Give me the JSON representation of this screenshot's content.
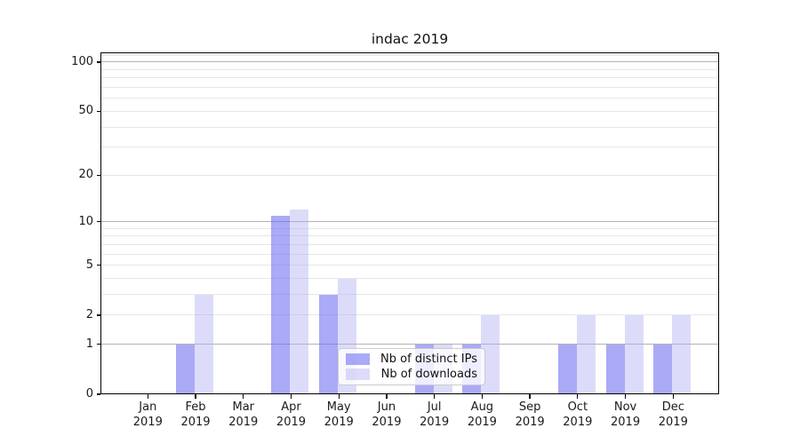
{
  "chart_data": {
    "type": "bar",
    "title": "indac 2019",
    "categories": [
      "Jan",
      "Feb",
      "Mar",
      "Apr",
      "May",
      "Jun",
      "Jul",
      "Aug",
      "Sep",
      "Oct",
      "Nov",
      "Dec"
    ],
    "x_tick_year": "2019",
    "series": [
      {
        "name": "Nb of distinct IPs",
        "color": "rgba(100,100,240,0.55)",
        "values": [
          0,
          1,
          0,
          11,
          3,
          0,
          1,
          1,
          0,
          1,
          1,
          1
        ]
      },
      {
        "name": "Nb of downloads",
        "color": "rgba(172,172,243,0.42)",
        "values": [
          0,
          3,
          0,
          12,
          4,
          0,
          1,
          2,
          0,
          2,
          2,
          2
        ]
      }
    ],
    "y_axis": {
      "scale": "log10(1+x)",
      "ticks": [
        0,
        1,
        2,
        5,
        10,
        20,
        50,
        100
      ],
      "major_gridlines": [
        1,
        10,
        100
      ],
      "minor_gridlines": [
        2,
        3,
        4,
        5,
        6,
        7,
        8,
        9,
        20,
        30,
        40,
        50,
        60,
        70,
        80,
        90,
        110
      ],
      "range": [
        0,
        115
      ]
    },
    "legend": {
      "position": "lower center"
    },
    "grid": true
  },
  "colors": {
    "major_grid": "#b3b3b3",
    "minor_grid": "#e7e7e7",
    "spine": "#000000",
    "text": "#1a1a1a"
  }
}
